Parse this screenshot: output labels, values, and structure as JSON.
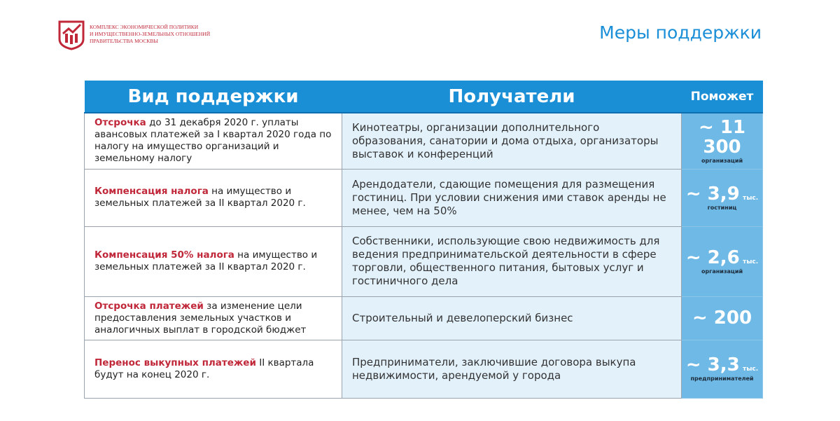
{
  "logo": {
    "text": "Комплекс экономической политики и имущественно-земельных отношений Правительства Москвы",
    "lines": [
      "Комплекс экономической политики",
      "и имущественно-земельных отношений",
      "Правительства Москвы"
    ],
    "color": "#c0283a"
  },
  "title": "Меры поддержки",
  "table": {
    "headers": [
      "Вид поддержки",
      "Получатели",
      "Поможет"
    ],
    "rows": [
      {
        "highlight": "Отсрочка",
        "rest": " до  31 декабря 2020 г. уплаты авансовых платежей за I квартал 2020 года по налогу на имущество организаций и земельному налогу",
        "recipients": "Кинотеатры, организации дополнительного образования,  санатории и дома отдыха, организаторы выставок и конференций",
        "num": "~ 11 300",
        "unit": "",
        "sub": "организаций"
      },
      {
        "highlight": "Компенсация налога",
        "rest": " на имущество и земельных платежей за II квартал 2020 г.",
        "recipients": "Арендодатели, сдающие помещения для размещения гостиниц. При условии снижения ими ставок аренды не менее, чем на 50%",
        "num": "~ 3,9",
        "unit": "тыс.",
        "sub": "гостиниц"
      },
      {
        "highlight": "Компенсация 50% налога",
        "rest": " на имущество и земельных платежей за II квартал 2020 г.",
        "recipients": "Собственники, использующие свою недвижимость для ведения предпринимательской деятельности в сфере торговли, общественного питания, бытовых услуг и гостиничного дела",
        "num": "~ 2,6",
        "unit": "тыс.",
        "sub": "организаций"
      },
      {
        "highlight": "Отсрочка платежей",
        "rest": " за изменение цели предоставления земельных участков и аналогичных выплат в городской бюджет",
        "recipients": "Строительный и девелоперский бизнес",
        "num": "~ 200",
        "unit": "",
        "sub": ""
      },
      {
        "highlight": "Перенос выкупных платежей",
        "rest": " II квартала будут на конец 2020 г.",
        "recipients": "Предприниматели, заключившие договора выкупа недвижимости, арендуемой у города",
        "num": "~ 3,3",
        "unit": "тыс.",
        "sub": "предпринимателей"
      }
    ]
  },
  "colors": {
    "header": "#1b8fd6",
    "accent_red": "#c0283a",
    "recipients_bg": "#e3f1fb",
    "result_bg": "#6fb9e6"
  }
}
